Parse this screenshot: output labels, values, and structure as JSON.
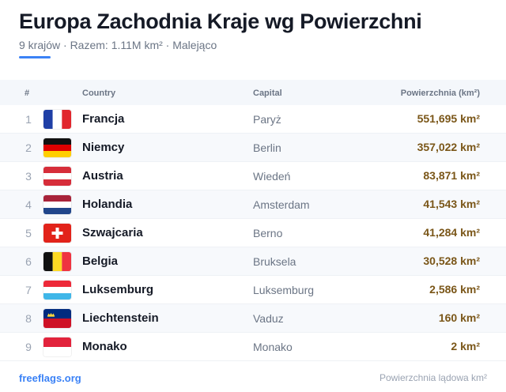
{
  "header": {
    "title": "Europa Zachodnia Kraje wg Powierzchni",
    "subtitle": "9 krajów · Razem: 1.11M km² · Malejąco",
    "accent_color": "#3b82f6"
  },
  "table": {
    "columns": {
      "num": "#",
      "country": "Country",
      "capital": "Capital",
      "area": "Powierzchnia (km²)"
    },
    "rows": [
      {
        "num": "1",
        "flag": "fr-flag-icon",
        "country": "Francja",
        "capital": "Paryż",
        "area": "551,695 km²"
      },
      {
        "num": "2",
        "flag": "de-flag-icon",
        "country": "Niemcy",
        "capital": "Berlin",
        "area": "357,022 km²"
      },
      {
        "num": "3",
        "flag": "at-flag-icon",
        "country": "Austria",
        "capital": "Wiedeń",
        "area": "83,871 km²"
      },
      {
        "num": "4",
        "flag": "nl-flag-icon",
        "country": "Holandia",
        "capital": "Amsterdam",
        "area": "41,543 km²"
      },
      {
        "num": "5",
        "flag": "ch-flag-icon",
        "country": "Szwajcaria",
        "capital": "Berno",
        "area": "41,284 km²"
      },
      {
        "num": "6",
        "flag": "be-flag-icon",
        "country": "Belgia",
        "capital": "Bruksela",
        "area": "30,528 km²"
      },
      {
        "num": "7",
        "flag": "lu-flag-icon",
        "country": "Luksemburg",
        "capital": "Luksemburg",
        "area": "2,586 km²"
      },
      {
        "num": "8",
        "flag": "li-flag-icon",
        "country": "Liechtenstein",
        "capital": "Vaduz",
        "area": "160 km²"
      },
      {
        "num": "9",
        "flag": "mc-flag-icon",
        "country": "Monako",
        "capital": "Monako",
        "area": "2 km²"
      }
    ]
  },
  "footer": {
    "source": "freeflags.org",
    "note": "Powierzchnia lądowa km²"
  },
  "colors": {
    "area_value": "#7a5618",
    "header_bg": "#f4f7fb",
    "alt_row_bg": "#f7f9fc"
  }
}
